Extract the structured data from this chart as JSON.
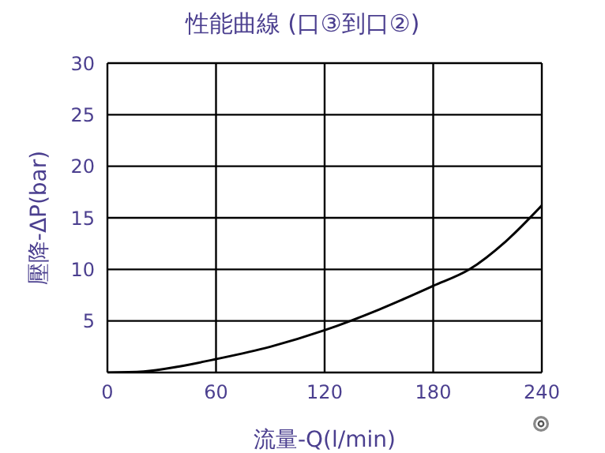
{
  "chart_data": {
    "type": "line",
    "title": "性能曲線 (口③到口②)",
    "xlabel": "流量-Q(l/min)",
    "ylabel": "壓降-ΔP(bar)",
    "x": [
      0,
      20,
      40,
      60,
      90,
      120,
      150,
      180,
      200,
      220,
      240
    ],
    "series": [
      {
        "color": "#000000",
        "values": [
          0,
          0.1,
          0.6,
          1.3,
          2.5,
          4.1,
          6.1,
          8.4,
          10,
          12.7,
          16.2
        ]
      }
    ],
    "xlim": [
      0,
      240
    ],
    "xticks": [
      0,
      60,
      120,
      180,
      240
    ],
    "ylim": [
      0,
      30
    ],
    "yticks": [
      {
        "value": 0,
        "label": null
      },
      5,
      10,
      15,
      20,
      25,
      30
    ],
    "grid": true,
    "marker": "none",
    "line_style": "solid"
  }
}
